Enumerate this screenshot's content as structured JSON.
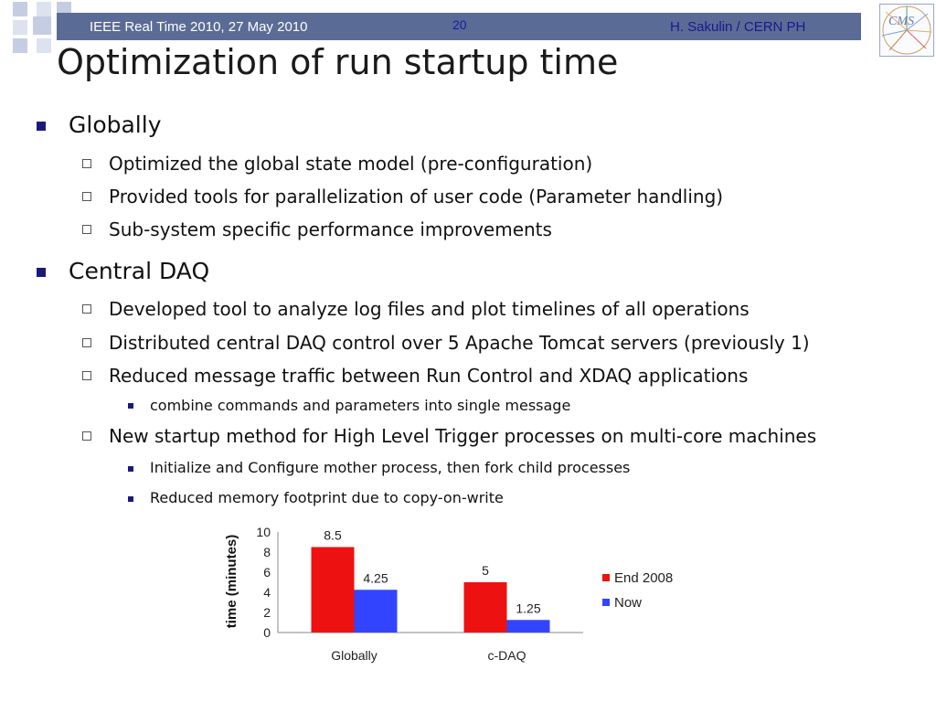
{
  "header": {
    "event": "IEEE Real Time 2010, 27 May 2010",
    "page_number": "20",
    "author": "H. Sakulin / CERN PH"
  },
  "logo_text": "CMS",
  "title": "Optimization of run startup time",
  "sections": [
    {
      "label": "Globally",
      "items": [
        "Optimized the global state model (pre-configuration)",
        "Provided tools for parallelization of user code (Parameter handling)",
        "Sub-system specific performance improvements"
      ]
    },
    {
      "label": "Central DAQ",
      "items": [
        "Developed tool to analyze log files and plot timelines of all operations",
        "Distributed central DAQ control over 5 Apache Tomcat servers (previously 1)",
        "Reduced message traffic between Run Control and XDAQ  applications",
        "New startup method for High Level Trigger processes on multi-core machines"
      ],
      "subitems": {
        "item3": [
          "combine commands and parameters into single message"
        ],
        "item4": [
          "Initialize and Configure mother process, then fork child processes",
          "Reduced memory footprint due to copy-on-write"
        ]
      }
    }
  ],
  "chart_data": {
    "type": "bar",
    "categories": [
      "Globally",
      "c-DAQ"
    ],
    "series": [
      {
        "name": "End 2008",
        "values": [
          8.5,
          5
        ],
        "color": "#ee1111",
        "labels": [
          "8.5",
          "5"
        ]
      },
      {
        "name": "Now",
        "values": [
          4.25,
          1.25
        ],
        "color": "#3344ff",
        "labels": [
          "4.25",
          "1.25"
        ]
      }
    ],
    "ylabel": "time (minutes)",
    "xlabel": "",
    "ylim": [
      0,
      10
    ],
    "yticks": [
      "0",
      "2",
      "4",
      "6",
      "8",
      "10"
    ],
    "grid": false,
    "legend": "right"
  },
  "colors": {
    "header_bar": "#5a6b96",
    "accent": "#1a1a7c"
  }
}
